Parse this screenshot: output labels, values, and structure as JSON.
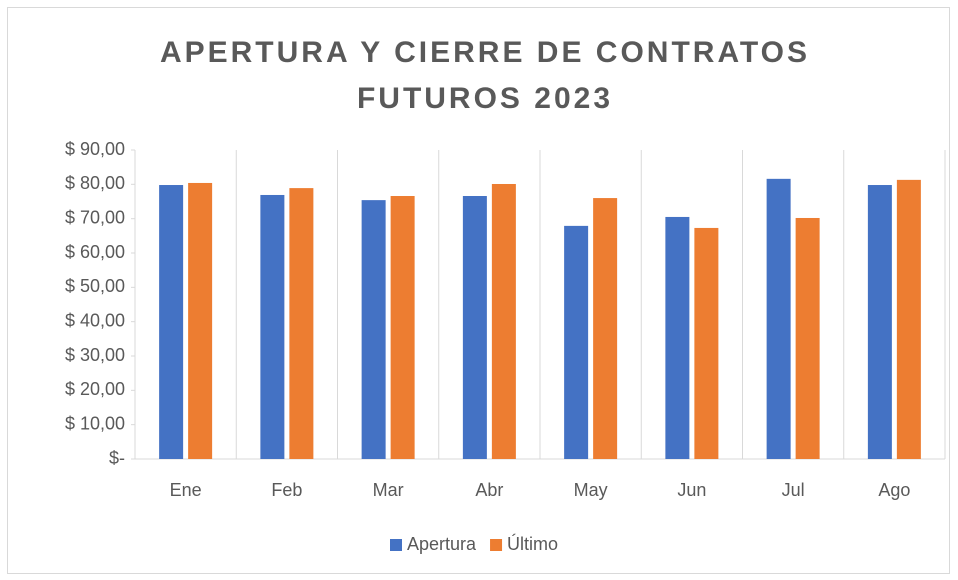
{
  "chart_data": {
    "type": "bar",
    "title": "APERTURA Y CIERRE DE CONTRATOS FUTUROS 2023",
    "categories": [
      "Ene",
      "Feb",
      "Mar",
      "Abr",
      "May",
      "Jun",
      "Jul",
      "Ago"
    ],
    "series": [
      {
        "name": "Apertura",
        "color": "#4472c4",
        "values": [
          79.8,
          76.9,
          75.4,
          76.6,
          67.9,
          70.5,
          81.6,
          79.8
        ]
      },
      {
        "name": "Último",
        "color": "#ed7d31",
        "values": [
          80.4,
          78.9,
          76.6,
          80.1,
          76.0,
          67.3,
          70.2,
          81.3
        ]
      }
    ],
    "ylim": [
      0,
      90
    ],
    "yticks": [
      {
        "value": 0,
        "label": "$-"
      },
      {
        "value": 10,
        "label": "$ 10,00"
      },
      {
        "value": 20,
        "label": "$ 20,00"
      },
      {
        "value": 30,
        "label": "$ 30,00"
      },
      {
        "value": 40,
        "label": "$ 40,00"
      },
      {
        "value": 50,
        "label": "$ 50,00"
      },
      {
        "value": 60,
        "label": "$ 60,00"
      },
      {
        "value": 70,
        "label": "$ 70,00"
      },
      {
        "value": 80,
        "label": "$ 80,00"
      },
      {
        "value": 90,
        "label": "$ 90,00"
      }
    ],
    "legend": "bottom"
  }
}
